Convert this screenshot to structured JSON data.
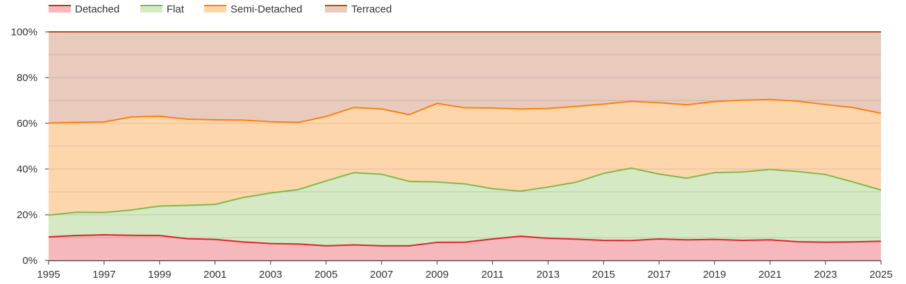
{
  "chart_data": {
    "type": "area",
    "stacked": true,
    "normalized": true,
    "title": "",
    "xlabel": "",
    "ylabel": "",
    "ylim": [
      0,
      100
    ],
    "y_ticks": [
      "0%",
      "20%",
      "40%",
      "60%",
      "80%",
      "100%"
    ],
    "x_ticks": [
      "1995",
      "1997",
      "1999",
      "2001",
      "2003",
      "2005",
      "2007",
      "2009",
      "2011",
      "2013",
      "2015",
      "2017",
      "2019",
      "2021",
      "2023",
      "2025"
    ],
    "grid": true,
    "legend_position": "top-left",
    "x": [
      1995,
      1996,
      1997,
      1998,
      1999,
      2000,
      2001,
      2002,
      2003,
      2004,
      2005,
      2006,
      2007,
      2008,
      2009,
      2010,
      2011,
      2012,
      2013,
      2014,
      2015,
      2016,
      2017,
      2018,
      2019,
      2020,
      2021,
      2022,
      2023,
      2024,
      2025
    ],
    "series": [
      {
        "name": "Detached",
        "line_color": "#d62728",
        "fill_color": "#f4b8bd",
        "values": [
          10.3,
          10.9,
          11.2,
          11.0,
          10.9,
          9.5,
          9.2,
          8.1,
          7.4,
          7.2,
          6.4,
          6.8,
          6.4,
          6.4,
          7.9,
          8.0,
          9.4,
          10.6,
          9.7,
          9.3,
          8.8,
          8.7,
          9.4,
          9.0,
          9.2,
          8.8,
          9.0,
          8.2,
          8.0,
          8.1,
          8.4
        ]
      },
      {
        "name": "Flat",
        "line_color": "#82b74b",
        "fill_color": "#d4e9c4",
        "values": [
          9.5,
          10.2,
          9.8,
          11.1,
          12.9,
          14.6,
          15.3,
          19.4,
          22.1,
          23.8,
          28.4,
          31.6,
          31.3,
          28.2,
          26.4,
          25.5,
          22.0,
          19.7,
          22.4,
          24.9,
          29.3,
          31.7,
          28.4,
          27.0,
          29.2,
          29.9,
          30.8,
          30.7,
          29.6,
          26.2,
          22.4
        ]
      },
      {
        "name": "Semi-Detached",
        "line_color": "#ff7f0e",
        "fill_color": "#fdd6ac",
        "values": [
          40.3,
          39.3,
          39.6,
          40.7,
          39.3,
          37.7,
          37.0,
          33.9,
          31.2,
          29.4,
          28.2,
          28.5,
          28.6,
          29.2,
          34.4,
          33.3,
          35.3,
          36.0,
          34.4,
          33.2,
          30.3,
          29.2,
          31.2,
          32.1,
          31.1,
          31.4,
          30.6,
          30.8,
          30.6,
          32.6,
          33.6
        ]
      },
      {
        "name": "Terraced",
        "line_color": "#c24a12",
        "fill_color": "#e8cbbd",
        "values": [
          39.9,
          39.6,
          39.4,
          37.2,
          36.9,
          38.2,
          38.5,
          38.6,
          39.3,
          39.6,
          37.0,
          33.1,
          33.7,
          36.2,
          31.3,
          33.2,
          33.3,
          33.7,
          33.5,
          32.6,
          31.6,
          30.4,
          31.0,
          31.9,
          30.5,
          29.9,
          29.6,
          30.3,
          31.8,
          33.1,
          35.6
        ]
      }
    ]
  }
}
